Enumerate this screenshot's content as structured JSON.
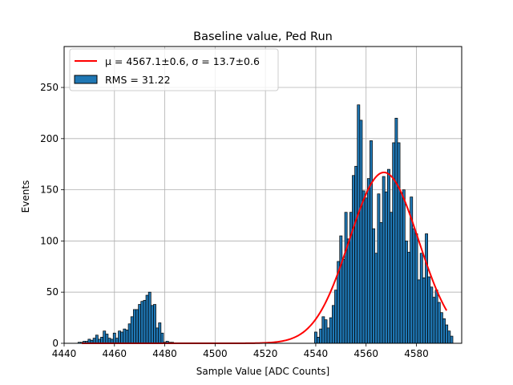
{
  "chart_data": {
    "type": "bar",
    "title": "Baseline value, Ped Run",
    "xlabel": "Sample Value [ADC Counts]",
    "ylabel": "Events",
    "xlim": [
      4440,
      4598
    ],
    "ylim": [
      0,
      290
    ],
    "xticks": [
      4440,
      4460,
      4480,
      4500,
      4520,
      4540,
      4560,
      4580
    ],
    "yticks": [
      0,
      50,
      100,
      150,
      200,
      250
    ],
    "grid": true,
    "legend_position": "top-left",
    "bin_width": 1,
    "colors": {
      "bars": "#1f77b4",
      "fit": "#ff0000",
      "bar_edge": "#000000"
    },
    "series": [
      {
        "name": "RMS = 31.22",
        "kind": "histogram",
        "bins": [
          [
            4446,
            1
          ],
          [
            4447,
            1
          ],
          [
            4448,
            2
          ],
          [
            4449,
            2
          ],
          [
            4450,
            4
          ],
          [
            4451,
            3
          ],
          [
            4452,
            5
          ],
          [
            4453,
            8
          ],
          [
            4454,
            4
          ],
          [
            4455,
            6
          ],
          [
            4456,
            12
          ],
          [
            4457,
            9
          ],
          [
            4458,
            5
          ],
          [
            4459,
            4
          ],
          [
            4460,
            10
          ],
          [
            4461,
            5
          ],
          [
            4462,
            12
          ],
          [
            4463,
            11
          ],
          [
            4464,
            14
          ],
          [
            4465,
            13
          ],
          [
            4466,
            19
          ],
          [
            4467,
            26
          ],
          [
            4468,
            33
          ],
          [
            4469,
            33
          ],
          [
            4470,
            38
          ],
          [
            4471,
            41
          ],
          [
            4472,
            42
          ],
          [
            4473,
            47
          ],
          [
            4474,
            50
          ],
          [
            4475,
            37
          ],
          [
            4476,
            38
          ],
          [
            4477,
            15
          ],
          [
            4478,
            20
          ],
          [
            4479,
            10
          ],
          [
            4480,
            1
          ],
          [
            4481,
            2
          ],
          [
            4482,
            1
          ],
          [
            4483,
            1
          ],
          [
            4540,
            11
          ],
          [
            4541,
            6
          ],
          [
            4542,
            14
          ],
          [
            4543,
            26
          ],
          [
            4544,
            23
          ],
          [
            4545,
            15
          ],
          [
            4546,
            25
          ],
          [
            4547,
            37
          ],
          [
            4548,
            52
          ],
          [
            4549,
            80
          ],
          [
            4550,
            105
          ],
          [
            4551,
            82
          ],
          [
            4552,
            128
          ],
          [
            4553,
            102
          ],
          [
            4554,
            128
          ],
          [
            4555,
            164
          ],
          [
            4556,
            173
          ],
          [
            4557,
            233
          ],
          [
            4558,
            218
          ],
          [
            4559,
            149
          ],
          [
            4560,
            142
          ],
          [
            4561,
            161
          ],
          [
            4562,
            198
          ],
          [
            4563,
            112
          ],
          [
            4564,
            88
          ],
          [
            4565,
            146
          ],
          [
            4566,
            118
          ],
          [
            4567,
            163
          ],
          [
            4568,
            148
          ],
          [
            4569,
            170
          ],
          [
            4570,
            128
          ],
          [
            4571,
            196
          ],
          [
            4572,
            220
          ],
          [
            4573,
            196
          ],
          [
            4574,
            147
          ],
          [
            4575,
            150
          ],
          [
            4576,
            100
          ],
          [
            4577,
            89
          ],
          [
            4578,
            143
          ],
          [
            4579,
            112
          ],
          [
            4580,
            107
          ],
          [
            4581,
            62
          ],
          [
            4582,
            88
          ],
          [
            4583,
            64
          ],
          [
            4584,
            107
          ],
          [
            4585,
            65
          ],
          [
            4586,
            55
          ],
          [
            4587,
            45
          ],
          [
            4588,
            52
          ],
          [
            4589,
            40
          ],
          [
            4590,
            30
          ],
          [
            4591,
            24
          ],
          [
            4592,
            18
          ],
          [
            4593,
            12
          ],
          [
            4594,
            7
          ]
        ]
      },
      {
        "name": "μ = 4567.1±0.6, σ = 13.7±0.6",
        "kind": "gaussian-fit",
        "mu": 4567.1,
        "sigma": 13.7,
        "amplitude": 167,
        "x_range": [
          4447,
          4592
        ]
      }
    ],
    "legend": [
      {
        "label": "μ = 4567.1±0.6, σ = 13.7±0.6",
        "symbol": "line"
      },
      {
        "label": "RMS = 31.22",
        "symbol": "patch"
      }
    ]
  }
}
